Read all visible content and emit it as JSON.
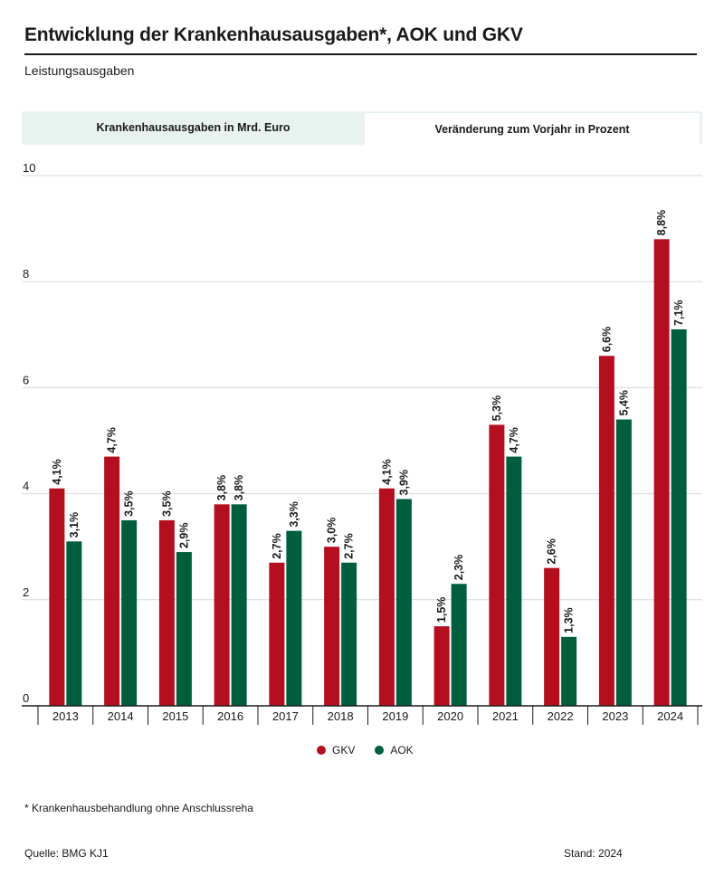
{
  "header": {
    "title": "Entwicklung der Krankenhausausgaben*, AOK und GKV",
    "subtitle": "Leistungsausgaben"
  },
  "tabs": [
    {
      "label": "Krankenhausausgaben in Mrd. Euro",
      "active": false
    },
    {
      "label": "Veränderung zum Vorjahr in Prozent",
      "active": true
    }
  ],
  "colors": {
    "gkv": "#b40f1e",
    "aok": "#005e3c",
    "grid": "#d9d9d9",
    "axis": "#1a1a1a"
  },
  "chart_data": {
    "type": "bar",
    "title": "Veränderung zum Vorjahr in Prozent",
    "categories": [
      "2013",
      "2014",
      "2015",
      "2016",
      "2017",
      "2018",
      "2019",
      "2020",
      "2021",
      "2022",
      "2023",
      "2024"
    ],
    "series": [
      {
        "name": "GKV",
        "values": [
          4.1,
          4.7,
          3.5,
          3.8,
          2.7,
          3.0,
          4.1,
          1.5,
          5.3,
          2.6,
          6.6,
          8.8
        ],
        "labels": [
          "4,1%",
          "4,7%",
          "3,5%",
          "3,8%",
          "2,7%",
          "3,0%",
          "4,1%",
          "1,5%",
          "5,3%",
          "2,6%",
          "6,6%",
          "8,8%"
        ]
      },
      {
        "name": "AOK",
        "values": [
          3.1,
          3.5,
          2.9,
          3.8,
          3.3,
          2.7,
          3.9,
          2.3,
          4.7,
          1.3,
          5.4,
          7.1
        ],
        "labels": [
          "3,1%",
          "3,5%",
          "2,9%",
          "3,8%",
          "3,3%",
          "2,7%",
          "3,9%",
          "2,3%",
          "4,7%",
          "1,3%",
          "5,4%",
          "7,1%"
        ]
      }
    ],
    "ylim": [
      0,
      10
    ],
    "yticks": [
      0,
      2,
      4,
      6,
      8,
      10
    ],
    "ytick_labels": [
      "0",
      "2",
      "4",
      "6",
      "8",
      "10"
    ],
    "grid": true,
    "legend": "bottom-center"
  },
  "footer": {
    "footnote": "* Krankenhausbehandlung ohne Anschlussreha",
    "source": "Quelle: BMG  KJ1",
    "stand": "Stand: 2024"
  }
}
